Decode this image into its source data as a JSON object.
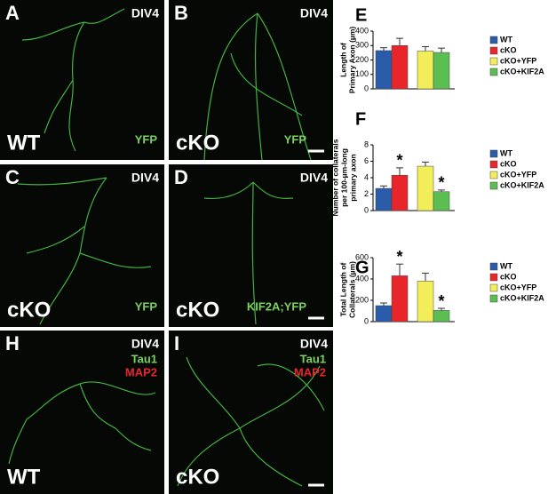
{
  "panels": [
    {
      "letter": "A",
      "tag": "DIV4",
      "genotype": "WT",
      "markers": [
        "YFP"
      ]
    },
    {
      "letter": "B",
      "tag": "DIV4",
      "genotype": "cKO",
      "markers": [
        "YFP"
      ]
    },
    {
      "letter": "C",
      "tag": "DIV4",
      "genotype": "cKO",
      "markers": [
        "YFP"
      ]
    },
    {
      "letter": "D",
      "tag": "DIV4",
      "genotype": "cKO",
      "markers": [
        "KIF2A;YFP"
      ]
    },
    {
      "letter": "H",
      "tag": "DIV4",
      "genotype": "WT",
      "markers": [
        "Tau1",
        "MAP2"
      ]
    },
    {
      "letter": "I",
      "tag": "DIV4",
      "genotype": "cKO",
      "markers": [
        "Tau1",
        "MAP2"
      ]
    }
  ],
  "chart_data": [
    {
      "type": "bar",
      "panel": "E",
      "ylabel": [
        "Length of",
        "Primary Axon (µm)"
      ],
      "ylim": [
        0,
        400
      ],
      "yticks": [
        0,
        100,
        200,
        300,
        400
      ],
      "series": [
        {
          "name": "WT",
          "color": "#2a5caa",
          "values": [
            265
          ],
          "errors": [
            20
          ]
        },
        {
          "name": "cKO",
          "color": "#e8262a",
          "values": [
            300
          ],
          "errors": [
            50
          ]
        },
        {
          "name": "cKO+YFP",
          "color": "#f1ee5a",
          "values": [
            262
          ],
          "errors": [
            30
          ]
        },
        {
          "name": "cKO+KIF2A",
          "color": "#5cbd52",
          "values": [
            252
          ],
          "errors": [
            30
          ]
        }
      ]
    },
    {
      "type": "bar",
      "panel": "F",
      "ylabel": [
        "Number of collaterals",
        "per 100-µm-long",
        "primary axon"
      ],
      "ylim": [
        0,
        8
      ],
      "yticks": [
        0,
        2,
        4,
        6,
        8
      ],
      "series": [
        {
          "name": "WT",
          "color": "#2a5caa",
          "values": [
            2.7
          ],
          "errors": [
            0.3
          ]
        },
        {
          "name": "cKO",
          "color": "#e8262a",
          "values": [
            4.3
          ],
          "errors": [
            0.9
          ]
        },
        {
          "name": "cKO+YFP",
          "color": "#f1ee5a",
          "values": [
            5.4
          ],
          "errors": [
            0.5
          ]
        },
        {
          "name": "cKO+KIF2A",
          "color": "#5cbd52",
          "values": [
            2.3
          ],
          "errors": [
            0.2
          ]
        }
      ],
      "annotations": [
        {
          "series": "cKO",
          "text": "*"
        },
        {
          "series": "cKO+KIF2A",
          "text": "*"
        }
      ]
    },
    {
      "type": "bar",
      "panel": "G",
      "ylabel": [
        "Total Length of",
        "Collaterals (µm)"
      ],
      "ylim": [
        0,
        600
      ],
      "yticks": [
        0,
        200,
        400,
        600
      ],
      "series": [
        {
          "name": "WT",
          "color": "#2a5caa",
          "values": [
            150
          ],
          "errors": [
            25
          ]
        },
        {
          "name": "cKO",
          "color": "#e8262a",
          "values": [
            430
          ],
          "errors": [
            110
          ]
        },
        {
          "name": "cKO+YFP",
          "color": "#f1ee5a",
          "values": [
            380
          ],
          "errors": [
            75
          ]
        },
        {
          "name": "cKO+KIF2A",
          "color": "#5cbd52",
          "values": [
            105
          ],
          "errors": [
            20
          ]
        }
      ],
      "annotations": [
        {
          "series": "cKO",
          "text": "*"
        },
        {
          "series": "cKO+KIF2A",
          "text": "*"
        }
      ]
    }
  ]
}
